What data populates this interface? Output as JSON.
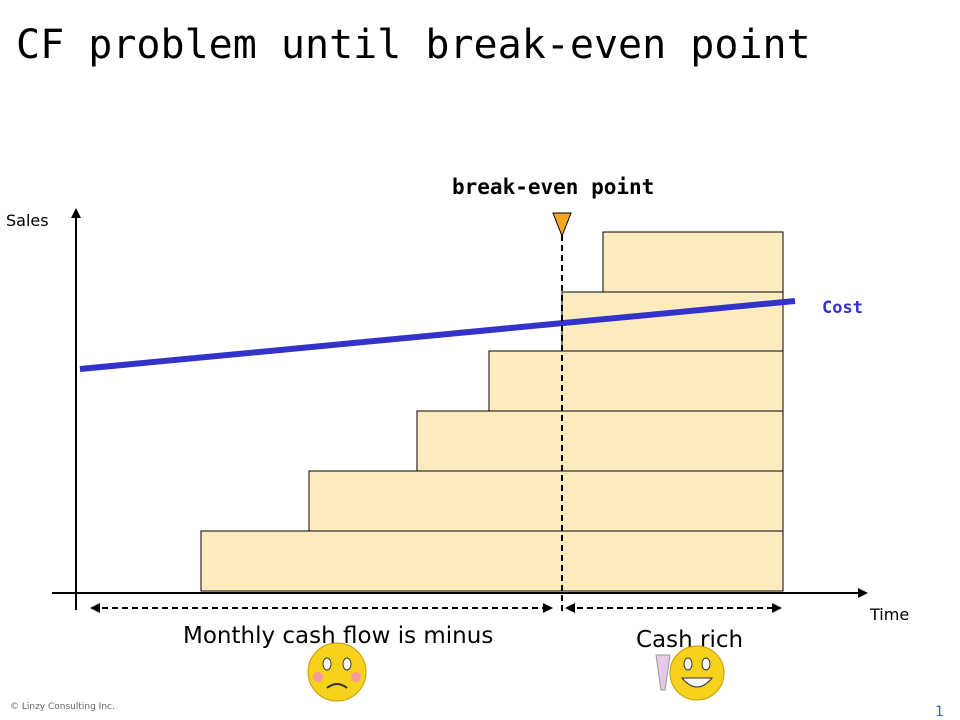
{
  "title": "CF problem until break-even point",
  "diagram": {
    "break_even_label": "break-even point",
    "y_axis_label": "Sales",
    "x_axis_label": "Time",
    "cost_label": "Cost",
    "minus_label": "Monthly cash flow is minus",
    "rich_label": "Cash rich"
  },
  "footer": {
    "copyright": "© Linzy Consulting Inc.",
    "page_number": "1"
  }
}
